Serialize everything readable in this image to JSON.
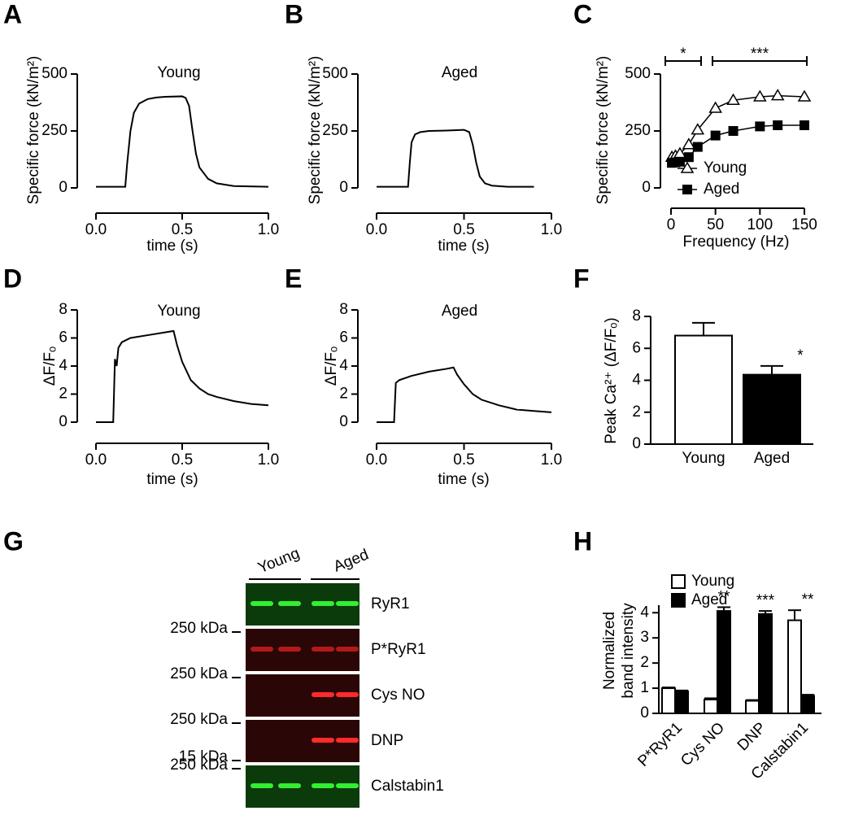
{
  "chart_data": [
    {
      "panel": "A",
      "type": "line",
      "title": "Young",
      "xlabel": "time (s)",
      "ylabel": "Specific force (kN/m²)",
      "xlim": [
        0,
        1
      ],
      "xticks": [
        {
          "value": 0,
          "label": "0.0"
        },
        {
          "value": 0.5,
          "label": "0.5"
        },
        {
          "value": 1,
          "label": "1.0"
        }
      ],
      "ylim": [
        0,
        500
      ],
      "yticks": [
        0,
        250,
        500
      ],
      "color": "#000000",
      "x": [
        0,
        0.17,
        0.18,
        0.2,
        0.22,
        0.25,
        0.3,
        0.35,
        0.4,
        0.5,
        0.52,
        0.54,
        0.56,
        0.58,
        0.6,
        0.65,
        0.7,
        0.8,
        1.0
      ],
      "values": [
        5,
        5,
        100,
        250,
        330,
        370,
        390,
        397,
        400,
        402,
        395,
        360,
        250,
        150,
        90,
        40,
        20,
        8,
        5
      ]
    },
    {
      "panel": "B",
      "type": "line",
      "title": "Aged",
      "xlabel": "time (s)",
      "ylabel": "Specific force (kN/m²)",
      "xlim": [
        0,
        1
      ],
      "xticks": [
        {
          "value": 0,
          "label": "0.0"
        },
        {
          "value": 0.5,
          "label": "0.5"
        },
        {
          "value": 1,
          "label": "1.0"
        }
      ],
      "ylim": [
        0,
        500
      ],
      "yticks": [
        0,
        250,
        500
      ],
      "color": "#000000",
      "x": [
        0,
        0.18,
        0.19,
        0.2,
        0.22,
        0.25,
        0.3,
        0.4,
        0.5,
        0.53,
        0.55,
        0.57,
        0.59,
        0.62,
        0.66,
        0.75,
        0.9
      ],
      "values": [
        5,
        5,
        110,
        200,
        235,
        245,
        250,
        252,
        255,
        245,
        190,
        110,
        50,
        20,
        10,
        5,
        5
      ]
    },
    {
      "panel": "C",
      "type": "line",
      "xlabel": "Frequency (Hz)",
      "ylabel": "Specific force (kN/m²)",
      "xlim": [
        0,
        150
      ],
      "xticks": [
        0,
        50,
        100,
        150
      ],
      "ylim": [
        0,
        500
      ],
      "yticks": [
        0,
        250,
        500
      ],
      "legend": "lower right",
      "annotations": [
        "*",
        "***"
      ],
      "x": [
        1,
        5,
        10,
        20,
        30,
        50,
        70,
        100,
        120,
        150
      ],
      "series": [
        {
          "name": "Young",
          "color": "#000000",
          "marker": "open-triangle",
          "values": [
            135,
            140,
            150,
            190,
            255,
            350,
            385,
            400,
            405,
            400
          ],
          "errors": [
            5,
            5,
            5,
            10,
            20,
            10,
            8,
            5,
            5,
            5
          ]
        },
        {
          "name": "Aged",
          "color": "#000000",
          "marker": "filled-square",
          "values": [
            110,
            112,
            115,
            135,
            180,
            230,
            250,
            270,
            275,
            275
          ],
          "errors": [
            10,
            10,
            10,
            15,
            20,
            18,
            15,
            12,
            15,
            12
          ]
        }
      ]
    },
    {
      "panel": "D",
      "type": "line",
      "title": "Young",
      "xlabel": "time (s)",
      "ylabel": "ΔF/Fₒ",
      "xlim": [
        0,
        1
      ],
      "xticks": [
        {
          "value": 0,
          "label": "0.0"
        },
        {
          "value": 0.5,
          "label": "0.5"
        },
        {
          "value": 1,
          "label": "1.0"
        }
      ],
      "ylim": [
        0,
        8
      ],
      "yticks": [
        0,
        2,
        4,
        6,
        8
      ],
      "color": "#000000",
      "x": [
        0,
        0.1,
        0.11,
        0.12,
        0.13,
        0.15,
        0.2,
        0.3,
        0.4,
        0.45,
        0.47,
        0.5,
        0.55,
        0.6,
        0.65,
        0.7,
        0.8,
        0.9,
        1.0
      ],
      "values": [
        0,
        0,
        4.5,
        4.0,
        5.3,
        5.7,
        6.0,
        6.2,
        6.4,
        6.5,
        5.5,
        4.3,
        3.0,
        2.4,
        2.0,
        1.8,
        1.5,
        1.3,
        1.2
      ]
    },
    {
      "panel": "E",
      "type": "line",
      "title": "Aged",
      "xlabel": "time (s)",
      "ylabel": "ΔF/Fₒ",
      "xlim": [
        0,
        1
      ],
      "xticks": [
        {
          "value": 0,
          "label": "0.0"
        },
        {
          "value": 0.5,
          "label": "0.5"
        },
        {
          "value": 1,
          "label": "1.0"
        }
      ],
      "ylim": [
        0,
        8
      ],
      "yticks": [
        0,
        2,
        4,
        6,
        8
      ],
      "color": "#000000",
      "x": [
        0,
        0.1,
        0.11,
        0.13,
        0.2,
        0.3,
        0.4,
        0.44,
        0.46,
        0.5,
        0.55,
        0.6,
        0.7,
        0.8,
        0.9,
        1.0
      ],
      "values": [
        0,
        0,
        2.8,
        3.0,
        3.3,
        3.6,
        3.8,
        3.9,
        3.4,
        2.7,
        2.0,
        1.6,
        1.2,
        0.9,
        0.8,
        0.7
      ]
    },
    {
      "panel": "F",
      "type": "bar",
      "ylabel": "Peak Ca²⁺ (ΔF/Fₒ)",
      "ylim": [
        0,
        8
      ],
      "yticks": [
        0,
        2,
        4,
        6,
        8
      ],
      "categories": [
        "Young",
        "Aged"
      ],
      "values": [
        6.8,
        4.35
      ],
      "errors": [
        0.8,
        0.55
      ],
      "colors": [
        "#ffffff",
        "#000000"
      ],
      "significance": [
        null,
        "*"
      ]
    },
    {
      "panel": "H",
      "type": "bar",
      "ylabel": [
        "Normalized",
        "band intensity"
      ],
      "ylim": [
        0,
        4.3
      ],
      "yticks": [
        0,
        1,
        2,
        3,
        4
      ],
      "legend": "upper left",
      "categories": [
        "P*RyR1",
        "Cys NO",
        "DNP",
        "Calstabin1"
      ],
      "significance": [
        null,
        "**",
        "***",
        "**"
      ],
      "series": [
        {
          "name": "Young",
          "color": "#ffffff",
          "values": [
            1.0,
            0.55,
            0.5,
            3.7
          ],
          "errors": [
            0.03,
            0.05,
            0.03,
            0.4
          ]
        },
        {
          "name": "Aged",
          "color": "#000000",
          "values": [
            0.88,
            4.07,
            3.95,
            0.7
          ],
          "errors": [
            0.03,
            0.15,
            0.12,
            0.04
          ]
        }
      ]
    }
  ],
  "blot": {
    "panel": "G",
    "groups": [
      "Young",
      "Aged"
    ],
    "rows": [
      "RyR1",
      "P*RyR1",
      "Cys NO",
      "DNP",
      "Calstabin1"
    ],
    "markers": [
      "250 kDa",
      "250 kDa",
      "250 kDa",
      "250 kDa",
      "15 kDa"
    ]
  }
}
